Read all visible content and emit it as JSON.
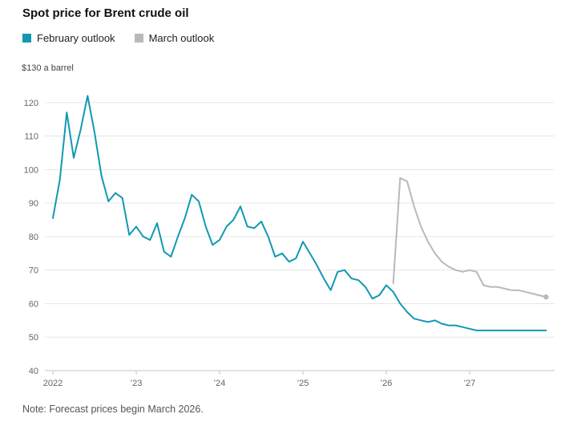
{
  "header": {
    "title": "Spot price for Brent crude oil"
  },
  "legend": [
    {
      "label": "February outlook",
      "color": "#1199b2"
    },
    {
      "label": "March outlook",
      "color": "#b9b9b9"
    }
  ],
  "axis": {
    "top_label": "$130 a barrel"
  },
  "note": {
    "text": "Note: Forecast prices begin March 2026."
  },
  "chart_data": {
    "type": "line",
    "title": "Spot price for Brent crude oil",
    "ylabel": "$ a barrel",
    "ylim": [
      40,
      130
    ],
    "xlim": [
      2022,
      2028
    ],
    "yticks": [
      40,
      50,
      60,
      70,
      80,
      90,
      100,
      110,
      120
    ],
    "xticks": [
      {
        "x": 2022,
        "label": "2022"
      },
      {
        "x": 2023,
        "label": "’23"
      },
      {
        "x": 2024,
        "label": "’24"
      },
      {
        "x": 2025,
        "label": "’25"
      },
      {
        "x": 2026,
        "label": "’26"
      },
      {
        "x": 2027,
        "label": "’27"
      }
    ],
    "grid": "horizontal",
    "legend_position": "top-left",
    "series": [
      {
        "id": "february-outlook",
        "name": "February outlook",
        "color": "#1199b2",
        "start": "2022-01",
        "interval": "monthly",
        "values": [
          85.5,
          97,
          117,
          103.5,
          112,
          122,
          111,
          98,
          90.5,
          93,
          91.5,
          80.5,
          83,
          80,
          79,
          84,
          75.5,
          74,
          80,
          85.5,
          92.5,
          90.5,
          83,
          77.5,
          79,
          83,
          85,
          89,
          83,
          82.5,
          84.5,
          80,
          74,
          75,
          72.5,
          73.5,
          78.5,
          75,
          71.5,
          67.5,
          64,
          69.5,
          70,
          67.5,
          67,
          65,
          61.5,
          62.5,
          65.5,
          63.5,
          60,
          57.5,
          55.5,
          55,
          54.5,
          55,
          54,
          53.5,
          53.5,
          53,
          52.5,
          52,
          52,
          52,
          52,
          52,
          52,
          52,
          52,
          52,
          52,
          52
        ],
        "end_dot": false
      },
      {
        "id": "march-outlook",
        "name": "March outlook",
        "color": "#b9b9b9",
        "start": "2026-02",
        "interval": "monthly",
        "values": [
          66,
          97.5,
          96.5,
          89,
          83,
          78.5,
          75,
          72.5,
          71,
          70,
          69.5,
          70,
          69.5,
          65.5,
          65,
          65,
          64.5,
          64,
          64,
          63.5,
          63,
          62.5,
          62
        ],
        "end_dot": true
      }
    ]
  }
}
